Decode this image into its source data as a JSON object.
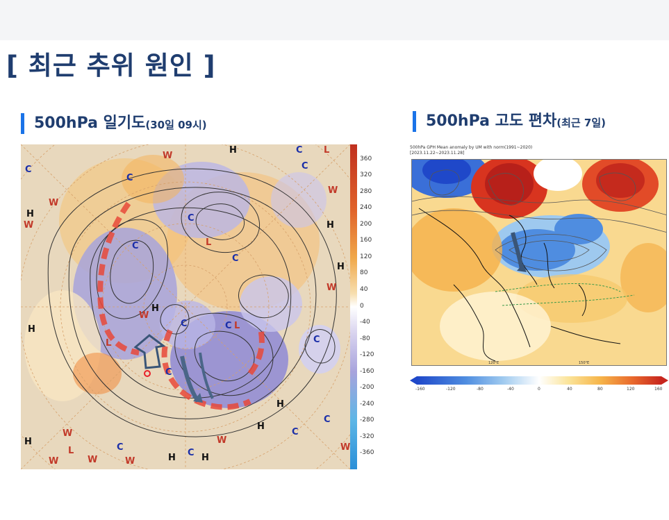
{
  "slide": {
    "title": "[ 최근 추위 원인 ]"
  },
  "left_panel": {
    "title_main": "500hPa 일기도",
    "title_sub": "(30일 09시)",
    "colorbar_ticks": [
      "360",
      "320",
      "280",
      "240",
      "200",
      "160",
      "120",
      "80",
      "40",
      "0",
      "-40",
      "-80",
      "-120",
      "-160",
      "-200",
      "-240",
      "-280",
      "-320",
      "-360"
    ]
  },
  "right_panel": {
    "title_main": "500hPa 고도 편차",
    "title_sub": "(최근 7일)",
    "header_line1": "500hPa GPH Mean anomaly by UM with norm(1991~2020)",
    "header_line2": "[2023.11.22~2023.11.28]",
    "colorbar_ticks": [
      "-160",
      "-120",
      "-80",
      "-40",
      "0",
      "40",
      "80",
      "120",
      "160"
    ],
    "lon_labels": [
      "120°E",
      "150°E"
    ]
  },
  "colors": {
    "title": "#1f3d6f",
    "accent_bar": "#1a73e8"
  }
}
